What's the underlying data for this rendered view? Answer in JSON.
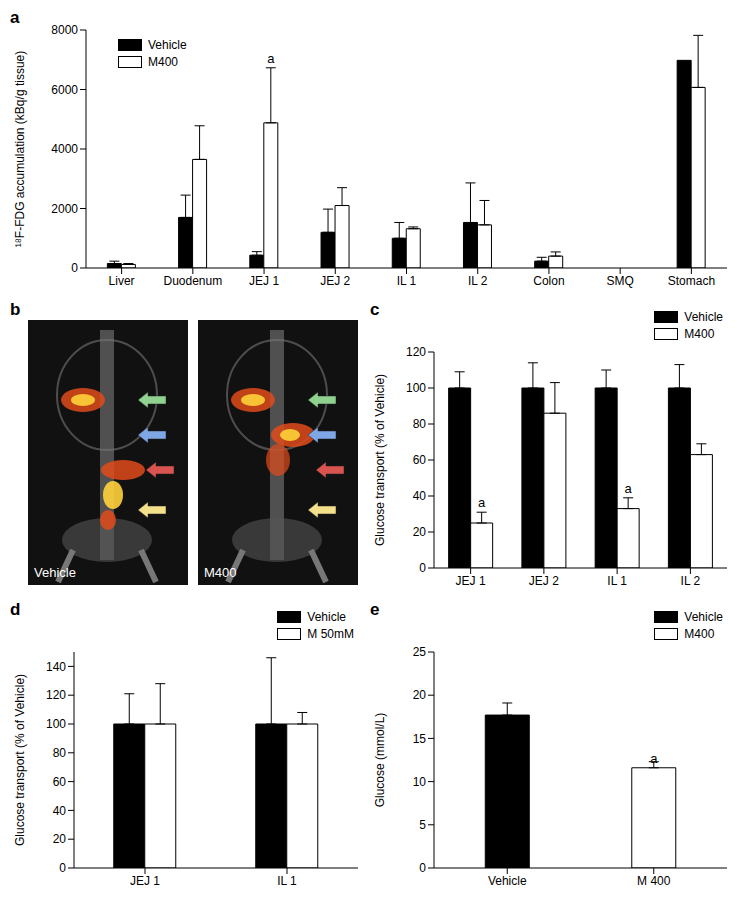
{
  "chart_data": [
    {
      "panel": "a",
      "type": "bar",
      "ylabel": "¹⁸F-FDG accumulation (kBq/g tissue)",
      "categories": [
        "Liver",
        "Duodenum",
        "JEJ 1",
        "JEJ 2",
        "IL 1",
        "IL 2",
        "Colon",
        "SMQ",
        "Stomach"
      ],
      "series": [
        {
          "name": "Vehicle",
          "color": "#000000",
          "values": [
            150,
            1700,
            430,
            1200,
            1000,
            1530,
            230,
            null,
            6980
          ],
          "errors": [
            80,
            750,
            120,
            780,
            530,
            1330,
            130,
            null,
            null
          ]
        },
        {
          "name": "M400",
          "color": "#ffffff",
          "values": [
            120,
            3650,
            4880,
            2100,
            1320,
            1450,
            400,
            null,
            6070
          ],
          "errors": [
            30,
            1130,
            1850,
            600,
            60,
            820,
            140,
            null,
            1750
          ]
        }
      ],
      "annotations": [
        {
          "text": "a",
          "series": "M400",
          "category": "JEJ 1"
        }
      ],
      "ylim": [
        0,
        8000
      ],
      "yticks": [
        0,
        2000,
        4000,
        6000,
        8000
      ],
      "legend": "upper left"
    },
    {
      "panel": "b",
      "type": "image",
      "labels": [
        "Vehicle",
        "M400"
      ]
    },
    {
      "panel": "c",
      "type": "bar",
      "ylabel": "Glucose transport (% of Vehicle)",
      "categories": [
        "JEJ 1",
        "JEJ 2",
        "IL 1",
        "IL 2"
      ],
      "series": [
        {
          "name": "Vehicle",
          "color": "#000000",
          "values": [
            100,
            100,
            100,
            100
          ],
          "errors": [
            9,
            14,
            10,
            13
          ]
        },
        {
          "name": "M400",
          "color": "#ffffff",
          "values": [
            25,
            86,
            33,
            63
          ],
          "errors": [
            6,
            17,
            6,
            6
          ]
        }
      ],
      "annotations": [
        {
          "text": "a",
          "series": "M400",
          "category": "JEJ 1"
        },
        {
          "text": "a",
          "series": "M400",
          "category": "IL 1"
        }
      ],
      "ylim": [
        0,
        120
      ],
      "yticks": [
        0,
        20,
        40,
        60,
        80,
        100,
        120
      ],
      "legend": "upper right"
    },
    {
      "panel": "d",
      "type": "bar",
      "ylabel": "Glucose transport (% of Vehicle)",
      "categories": [
        "JEJ 1",
        "IL 1"
      ],
      "series": [
        {
          "name": "Vehicle",
          "color": "#000000",
          "values": [
            100,
            100
          ],
          "errors": [
            21,
            46
          ]
        },
        {
          "name": "M 50mM",
          "color": "#ffffff",
          "values": [
            100,
            100
          ],
          "errors": [
            28,
            8
          ]
        }
      ],
      "annotations": [],
      "ylim": [
        0,
        150
      ],
      "yticks": [
        0,
        20,
        40,
        60,
        80,
        100,
        120,
        140
      ],
      "legend": "upper right"
    },
    {
      "panel": "e",
      "type": "bar",
      "ylabel": "Glucose (mmol/L)",
      "categories": [
        "Vehicle",
        "M 400"
      ],
      "series": [
        {
          "name": "Vehicle",
          "color": "#000000",
          "values": [
            17.7,
            null
          ],
          "errors": [
            1.4,
            null
          ]
        },
        {
          "name": "M400",
          "color": "#ffffff",
          "values": [
            null,
            11.6
          ],
          "errors": [
            null,
            0.7
          ]
        }
      ],
      "annotations": [
        {
          "text": "a",
          "series": "M400",
          "category": "M 400"
        }
      ],
      "ylim": [
        0,
        25
      ],
      "yticks": [
        0,
        5,
        10,
        15,
        20,
        25
      ],
      "legend": "upper right",
      "stacked": true
    }
  ]
}
